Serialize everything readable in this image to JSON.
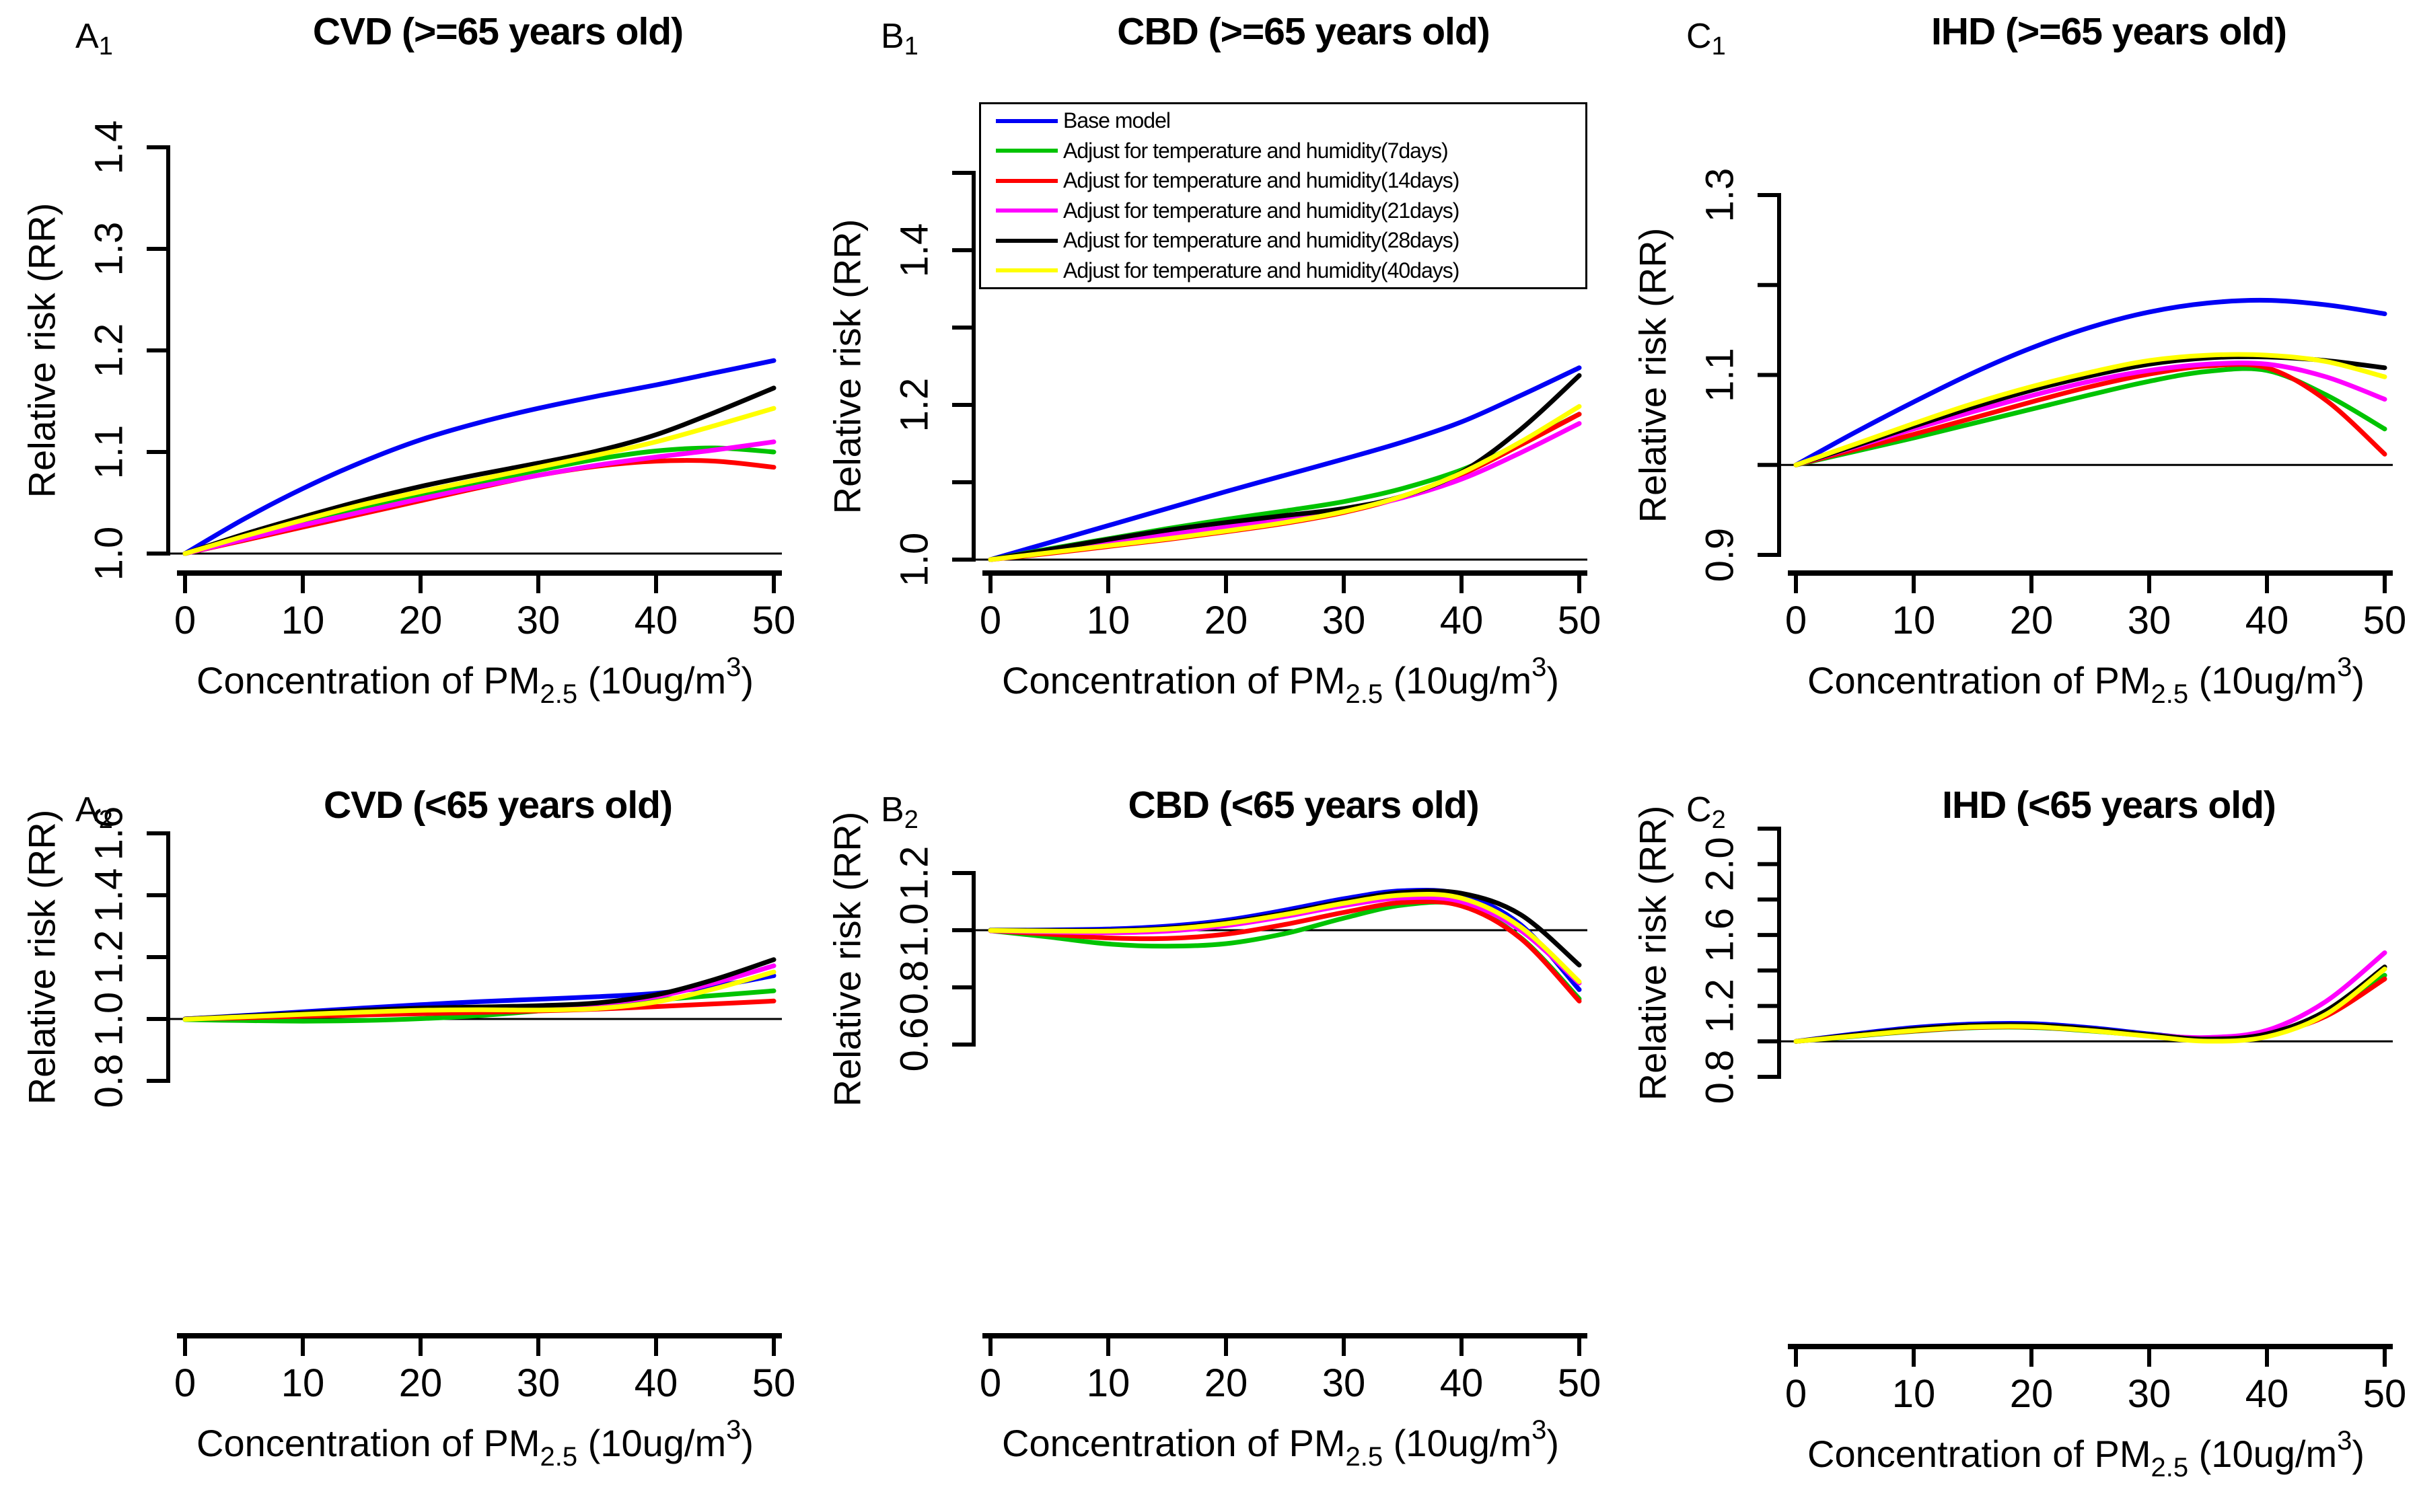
{
  "figure": {
    "ylabel": "Relative risk (RR)",
    "xlabel_plain": "Concentration of PM2.5 (10ug/m3)",
    "xlabel": {
      "pre": "Concentration of PM",
      "sub": "2.5",
      "mid": " (10ug/m",
      "sup": "3",
      "post": ")"
    },
    "background": "#ffffff",
    "axis_color": "#000000"
  },
  "legend": {
    "position": "top of panel B1",
    "items": [
      {
        "label": "Base model",
        "color": "#0000f5"
      },
      {
        "label": "Adjust for temperature and humidity(7days)",
        "color": "#00c300"
      },
      {
        "label": "Adjust for temperature and humidity(14days)",
        "color": "#ff0000"
      },
      {
        "label": "Adjust for temperature and humidity(21days)",
        "color": "#ff00ff"
      },
      {
        "label": "Adjust for temperature and humidity(28days)",
        "color": "#000000"
      },
      {
        "label": "Adjust for temperature and humidity(40days)",
        "color": "#ffff00"
      }
    ]
  },
  "chart_data": [
    {
      "id": "A1",
      "label_main": "A",
      "label_sub": "1",
      "title": "CVD (>=65 years old)",
      "type": "line",
      "xlabel": "Concentration of PM2.5 (10ug/m3)",
      "ylabel": "Relative risk (RR)",
      "xlim": [
        0,
        50
      ],
      "xticks": [
        0,
        10,
        20,
        30,
        40,
        50
      ],
      "yticks": [
        1.0,
        1.1,
        1.2,
        1.3,
        1.4
      ],
      "ytick_labels": [
        "1.0",
        "1.1",
        "1.2",
        "1.3",
        "1.4"
      ],
      "ref_line": 1.0,
      "x": [
        0,
        5,
        10,
        15,
        20,
        25,
        30,
        35,
        40,
        45,
        50
      ],
      "series": [
        {
          "name": "Base model",
          "color": "#0000f5",
          "values": [
            1.0,
            1.034,
            1.064,
            1.09,
            1.112,
            1.129,
            1.143,
            1.155,
            1.166,
            1.178,
            1.19
          ]
        },
        {
          "name": "Adjust for temperature and humidity(7days)",
          "color": "#00c300",
          "values": [
            1.0,
            1.015,
            1.03,
            1.044,
            1.057,
            1.07,
            1.082,
            1.093,
            1.101,
            1.104,
            1.1
          ]
        },
        {
          "name": "Adjust for temperature and humidity(14days)",
          "color": "#ff0000",
          "values": [
            1.0,
            1.013,
            1.026,
            1.039,
            1.052,
            1.065,
            1.077,
            1.086,
            1.091,
            1.091,
            1.085
          ]
        },
        {
          "name": "Adjust for temperature and humidity(21days)",
          "color": "#ff00ff",
          "values": [
            1.0,
            1.014,
            1.028,
            1.041,
            1.054,
            1.066,
            1.077,
            1.087,
            1.095,
            1.102,
            1.11
          ]
        },
        {
          "name": "Adjust for temperature and humidity(28days)",
          "color": "#000000",
          "values": [
            1.0,
            1.019,
            1.036,
            1.052,
            1.066,
            1.078,
            1.089,
            1.101,
            1.117,
            1.139,
            1.163
          ]
        },
        {
          "name": "Adjust for temperature and humidity(40days)",
          "color": "#ffff00",
          "values": [
            1.0,
            1.017,
            1.033,
            1.048,
            1.061,
            1.073,
            1.085,
            1.097,
            1.11,
            1.126,
            1.143
          ]
        }
      ]
    },
    {
      "id": "B1",
      "label_main": "B",
      "label_sub": "1",
      "title": "CBD (>=65 years old)",
      "type": "line",
      "xlabel": "Concentration of PM2.5 (10ug/m3)",
      "ylabel": "Relative risk (RR)",
      "xlim": [
        0,
        50
      ],
      "xticks": [
        0,
        10,
        20,
        30,
        40,
        50
      ],
      "yticks": [
        1.0,
        1.1,
        1.2,
        1.3,
        1.4,
        1.5
      ],
      "ytick_labels": [
        "1.0",
        "",
        "1.2",
        "",
        "1.4",
        ""
      ],
      "ref_line": 1.0,
      "x": [
        0,
        5,
        10,
        15,
        20,
        25,
        30,
        35,
        40,
        45,
        50
      ],
      "series": [
        {
          "name": "Base model",
          "color": "#0000f5",
          "values": [
            1.0,
            1.022,
            1.044,
            1.066,
            1.088,
            1.109,
            1.13,
            1.152,
            1.178,
            1.212,
            1.248
          ]
        },
        {
          "name": "Adjust for temperature and humidity(7days)",
          "color": "#00c300",
          "values": [
            1.0,
            1.014,
            1.027,
            1.04,
            1.052,
            1.063,
            1.075,
            1.092,
            1.116,
            1.15,
            1.188
          ]
        },
        {
          "name": "Adjust for temperature and humidity(14days)",
          "color": "#ff0000",
          "values": [
            1.0,
            1.008,
            1.017,
            1.026,
            1.036,
            1.047,
            1.061,
            1.081,
            1.11,
            1.148,
            1.188
          ]
        },
        {
          "name": "Adjust for temperature and humidity(21days)",
          "color": "#ff00ff",
          "values": [
            1.0,
            1.011,
            1.022,
            1.032,
            1.042,
            1.052,
            1.064,
            1.08,
            1.104,
            1.138,
            1.176
          ]
        },
        {
          "name": "Adjust for temperature and humidity(28days)",
          "color": "#000000",
          "values": [
            1.0,
            1.013,
            1.026,
            1.038,
            1.048,
            1.057,
            1.066,
            1.082,
            1.113,
            1.168,
            1.238
          ]
        },
        {
          "name": "Adjust for temperature and humidity(40days)",
          "color": "#ffff00",
          "values": [
            1.0,
            1.009,
            1.018,
            1.027,
            1.037,
            1.048,
            1.062,
            1.082,
            1.112,
            1.152,
            1.198
          ]
        }
      ]
    },
    {
      "id": "C1",
      "label_main": "C",
      "label_sub": "1",
      "title": "IHD (>=65 years old)",
      "type": "line",
      "xlabel": "Concentration of PM2.5 (10ug/m3)",
      "ylabel": "Relative risk (RR)",
      "xlim": [
        0,
        50
      ],
      "xticks": [
        0,
        10,
        20,
        30,
        40,
        50
      ],
      "yticks": [
        0.9,
        1.0,
        1.1,
        1.2,
        1.3
      ],
      "ytick_labels": [
        "0.9",
        "",
        "1.1",
        "",
        "1.3"
      ],
      "ref_line": 1.0,
      "x": [
        0,
        5,
        10,
        15,
        20,
        25,
        30,
        35,
        40,
        45,
        50
      ],
      "series": [
        {
          "name": "Base model",
          "color": "#0000f5",
          "values": [
            1.0,
            1.036,
            1.07,
            1.102,
            1.13,
            1.153,
            1.17,
            1.18,
            1.183,
            1.178,
            1.168
          ]
        },
        {
          "name": "Adjust for temperature and humidity(7days)",
          "color": "#00c300",
          "values": [
            1.0,
            1.015,
            1.03,
            1.046,
            1.062,
            1.078,
            1.093,
            1.104,
            1.105,
            1.078,
            1.04
          ]
        },
        {
          "name": "Adjust for temperature and humidity(14days)",
          "color": "#ff0000",
          "values": [
            1.0,
            1.017,
            1.034,
            1.052,
            1.07,
            1.087,
            1.101,
            1.11,
            1.108,
            1.072,
            1.012
          ]
        },
        {
          "name": "Adjust for temperature and humidity(21days)",
          "color": "#ff00ff",
          "values": [
            1.0,
            1.02,
            1.04,
            1.059,
            1.077,
            1.093,
            1.105,
            1.112,
            1.112,
            1.098,
            1.073
          ]
        },
        {
          "name": "Adjust for temperature and humidity(28days)",
          "color": "#000000",
          "values": [
            1.0,
            1.021,
            1.043,
            1.064,
            1.083,
            1.099,
            1.112,
            1.119,
            1.12,
            1.116,
            1.108
          ]
        },
        {
          "name": "Adjust for temperature and humidity(40days)",
          "color": "#ffff00",
          "values": [
            1.0,
            1.023,
            1.046,
            1.068,
            1.087,
            1.103,
            1.116,
            1.122,
            1.122,
            1.115,
            1.098
          ]
        }
      ]
    },
    {
      "id": "A2",
      "label_main": "A",
      "label_sub": "2",
      "title": "CVD (<65 years old)",
      "type": "line",
      "xlabel": "Concentration of PM2.5 (10ug/m3)",
      "ylabel": "Relative risk (RR)",
      "xlim": [
        0,
        50
      ],
      "xticks": [
        0,
        10,
        20,
        30,
        40,
        50
      ],
      "yticks": [
        0.8,
        1.0,
        1.2,
        1.4,
        1.6
      ],
      "ytick_labels": [
        "0.8",
        "1.0",
        "1.2",
        "1.4",
        "1.6"
      ],
      "ref_line": 1.0,
      "x": [
        0,
        5,
        10,
        15,
        20,
        25,
        30,
        35,
        40,
        45,
        50
      ],
      "series": [
        {
          "name": "Base model",
          "color": "#0000f5",
          "values": [
            1.0,
            1.011,
            1.023,
            1.035,
            1.046,
            1.056,
            1.064,
            1.072,
            1.083,
            1.106,
            1.14
          ]
        },
        {
          "name": "Adjust for temperature and humidity(7days)",
          "color": "#00c300",
          "values": [
            0.998,
            0.995,
            0.993,
            0.995,
            1.001,
            1.011,
            1.026,
            1.043,
            1.061,
            1.076,
            1.091
          ]
        },
        {
          "name": "Adjust for temperature and humidity(14days)",
          "color": "#ff0000",
          "values": [
            1.0,
            1.004,
            1.009,
            1.013,
            1.017,
            1.021,
            1.026,
            1.032,
            1.04,
            1.049,
            1.058
          ]
        },
        {
          "name": "Adjust for temperature and humidity(21days)",
          "color": "#ff00ff",
          "values": [
            1.0,
            1.008,
            1.016,
            1.025,
            1.032,
            1.036,
            1.04,
            1.049,
            1.072,
            1.117,
            1.172
          ]
        },
        {
          "name": "Adjust for temperature and humidity(28days)",
          "color": "#000000",
          "values": [
            1.0,
            1.009,
            1.019,
            1.028,
            1.035,
            1.039,
            1.043,
            1.052,
            1.078,
            1.128,
            1.192
          ]
        },
        {
          "name": "Adjust for temperature and humidity(40days)",
          "color": "#ffff00",
          "values": [
            0.999,
            1.007,
            1.015,
            1.022,
            1.028,
            1.03,
            1.029,
            1.034,
            1.055,
            1.098,
            1.152
          ]
        }
      ]
    },
    {
      "id": "B2",
      "label_main": "B",
      "label_sub": "2",
      "title": "CBD (<65 years old)",
      "type": "line",
      "xlabel": "Concentration of PM2.5 (10ug/m3)",
      "ylabel": "Relative risk (RR)",
      "xlim": [
        0,
        50
      ],
      "xticks": [
        0,
        10,
        20,
        30,
        40,
        50
      ],
      "yticks": [
        0.6,
        0.8,
        1.0,
        1.2
      ],
      "ytick_labels": [
        "0.6",
        "0.8",
        "1.0",
        "1.2"
      ],
      "ref_line": 1.0,
      "x": [
        0,
        5,
        10,
        15,
        20,
        25,
        30,
        35,
        40,
        45,
        50
      ],
      "series": [
        {
          "name": "Base model",
          "color": "#0000f5",
          "values": [
            1.0,
            1.001,
            1.004,
            1.014,
            1.035,
            1.07,
            1.11,
            1.138,
            1.125,
            1.02,
            0.792
          ]
        },
        {
          "name": "Adjust for temperature and humidity(7days)",
          "color": "#00c300",
          "values": [
            0.998,
            0.976,
            0.952,
            0.944,
            0.953,
            0.988,
            1.042,
            1.088,
            1.088,
            0.975,
            0.76
          ]
        },
        {
          "name": "Adjust for temperature and humidity(14days)",
          "color": "#ff0000",
          "values": [
            0.998,
            0.986,
            0.973,
            0.971,
            0.986,
            1.02,
            1.062,
            1.097,
            1.085,
            0.972,
            0.752
          ]
        },
        {
          "name": "Adjust for temperature and humidity(21days)",
          "color": "#ff00ff",
          "values": [
            0.998,
            0.994,
            0.991,
            0.997,
            1.016,
            1.048,
            1.086,
            1.113,
            1.1,
            1.0,
            0.815
          ]
        },
        {
          "name": "Adjust for temperature and humidity(28days)",
          "color": "#000000",
          "values": [
            1.0,
            0.999,
            0.999,
            1.007,
            1.027,
            1.06,
            1.1,
            1.132,
            1.129,
            1.055,
            0.878
          ]
        },
        {
          "name": "Adjust for temperature and humidity(40days)",
          "color": "#ffff00",
          "values": [
            0.999,
            0.997,
            0.997,
            1.004,
            1.023,
            1.055,
            1.094,
            1.123,
            1.112,
            1.012,
            0.82
          ]
        }
      ]
    },
    {
      "id": "C2",
      "label_main": "C",
      "label_sub": "2",
      "title": "IHD (<65 years old)",
      "type": "line",
      "xlabel": "Concentration of PM2.5 (10ug/m3)",
      "ylabel": "Relative risk (RR)",
      "xlim": [
        0,
        50
      ],
      "xticks": [
        0,
        10,
        20,
        30,
        40,
        50
      ],
      "yticks": [
        0.8,
        1.0,
        1.2,
        1.4,
        1.6,
        1.8,
        2.0,
        2.2
      ],
      "ytick_labels": [
        "0.8",
        "",
        "1.2",
        "",
        "1.6",
        "",
        "2.0",
        ""
      ],
      "ref_line": 1.0,
      "x": [
        0,
        5,
        10,
        15,
        20,
        25,
        30,
        35,
        40,
        45,
        50
      ],
      "series": [
        {
          "name": "Base model",
          "color": "#0000f5",
          "values": [
            1.0,
            1.042,
            1.078,
            1.098,
            1.1,
            1.077,
            1.042,
            1.015,
            1.04,
            1.15,
            1.372
          ]
        },
        {
          "name": "Adjust for temperature and humidity(7days)",
          "color": "#00c300",
          "values": [
            1.0,
            1.029,
            1.057,
            1.077,
            1.079,
            1.059,
            1.032,
            1.013,
            1.042,
            1.157,
            1.373
          ]
        },
        {
          "name": "Adjust for temperature and humidity(14days)",
          "color": "#ff0000",
          "values": [
            1.0,
            1.031,
            1.059,
            1.079,
            1.081,
            1.061,
            1.034,
            1.011,
            1.037,
            1.142,
            1.352
          ]
        },
        {
          "name": "Adjust for temperature and humidity(21days)",
          "color": "#ff00ff",
          "values": [
            1.0,
            1.036,
            1.067,
            1.087,
            1.089,
            1.067,
            1.037,
            1.022,
            1.062,
            1.225,
            1.5
          ]
        },
        {
          "name": "Adjust for temperature and humidity(28days)",
          "color": "#000000",
          "values": [
            1.0,
            1.037,
            1.07,
            1.09,
            1.092,
            1.07,
            1.037,
            1.013,
            1.042,
            1.172,
            1.42
          ]
        },
        {
          "name": "Adjust for temperature and humidity(40days)",
          "color": "#ffff00",
          "values": [
            1.0,
            1.031,
            1.061,
            1.081,
            1.083,
            1.061,
            1.029,
            1.001,
            1.026,
            1.152,
            1.408
          ]
        }
      ]
    }
  ]
}
